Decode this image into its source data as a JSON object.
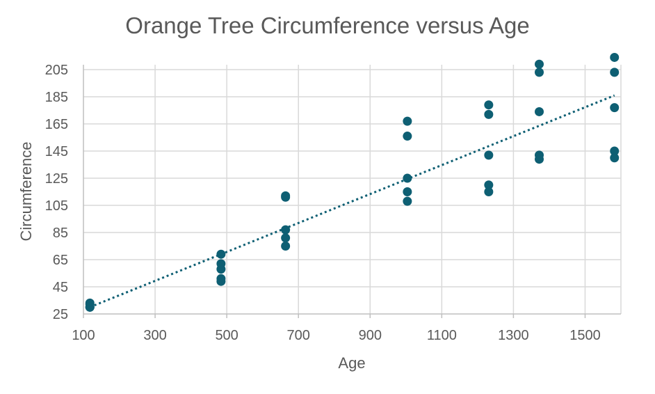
{
  "chart_data": {
    "type": "scatter",
    "title": "Orange Tree Circumference versus Age",
    "xlabel": "Age",
    "ylabel": "Circumference",
    "xlim": [
      100,
      1600
    ],
    "ylim": [
      25,
      210
    ],
    "x_ticks": [
      100,
      300,
      500,
      700,
      900,
      1100,
      1300,
      1500
    ],
    "y_ticks": [
      25,
      45,
      65,
      85,
      105,
      125,
      145,
      165,
      185,
      205
    ],
    "x_tick_labels": [
      "100",
      "300",
      "500",
      "700",
      "900",
      "1100",
      "1300",
      "1500"
    ],
    "y_tick_labels": [
      "25",
      "45",
      "65",
      "85",
      "105",
      "125",
      "145",
      "165",
      "185",
      "205"
    ],
    "grid": true,
    "legend": "none",
    "trendline": {
      "type": "linear",
      "style": "dotted",
      "x": [
        118,
        1582
      ],
      "y": [
        30,
        186
      ]
    },
    "series": [
      {
        "marker_color": "#0e5f73",
        "points": [
          [
            118,
            30
          ],
          [
            118,
            33
          ],
          [
            118,
            30
          ],
          [
            118,
            32
          ],
          [
            118,
            30
          ],
          [
            484,
            58
          ],
          [
            484,
            69
          ],
          [
            484,
            51
          ],
          [
            484,
            62
          ],
          [
            484,
            49
          ],
          [
            664,
            87
          ],
          [
            664,
            111
          ],
          [
            664,
            75
          ],
          [
            664,
            112
          ],
          [
            664,
            81
          ],
          [
            1004,
            115
          ],
          [
            1004,
            156
          ],
          [
            1004,
            108
          ],
          [
            1004,
            167
          ],
          [
            1004,
            125
          ],
          [
            1231,
            120
          ],
          [
            1231,
            172
          ],
          [
            1231,
            115
          ],
          [
            1231,
            179
          ],
          [
            1231,
            142
          ],
          [
            1372,
            142
          ],
          [
            1372,
            203
          ],
          [
            1372,
            139
          ],
          [
            1372,
            209
          ],
          [
            1372,
            174
          ],
          [
            1582,
            145
          ],
          [
            1582,
            203
          ],
          [
            1582,
            140
          ],
          [
            1582,
            214
          ],
          [
            1582,
            177
          ]
        ]
      }
    ]
  }
}
